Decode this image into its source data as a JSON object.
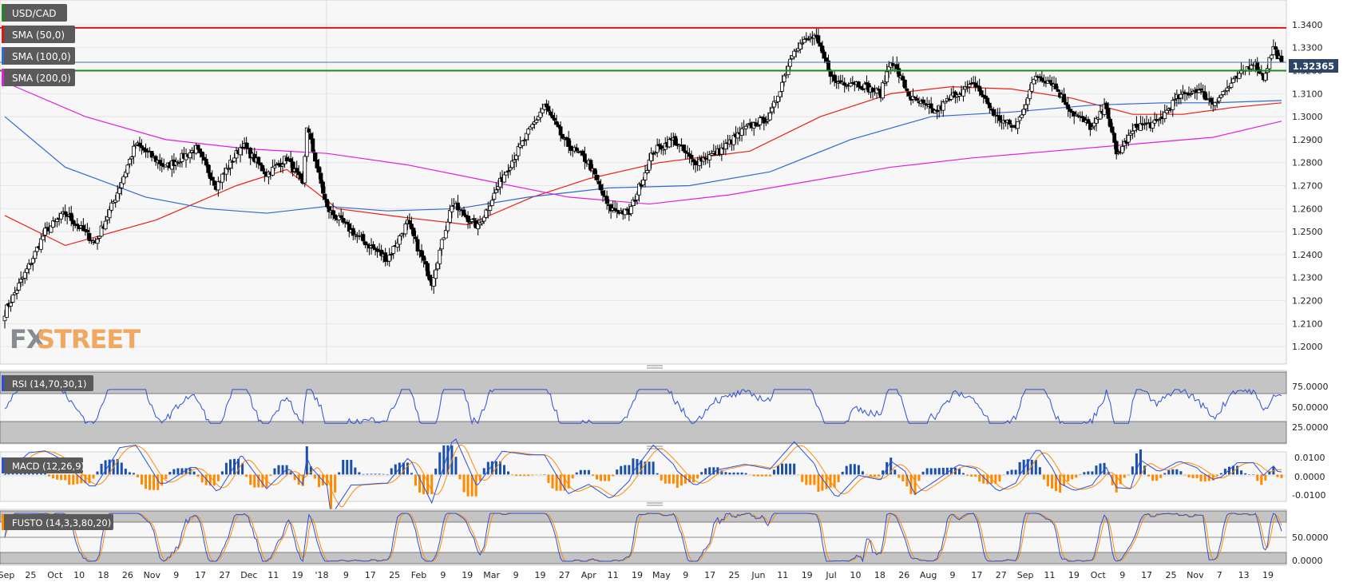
{
  "colors": {
    "background": "#ffffff",
    "panel_bg": "#f7f7f7",
    "grid": "#e4e4e4",
    "candle_up": "#ffffff",
    "candle_down": "#000000",
    "sma50": "#e8201a",
    "sma100": "#2f6ad0",
    "sma200": "#e020e0",
    "resistance_line": "#d81818",
    "support_line": "#1c8a1c",
    "price_line": "#5a6e96",
    "price_tag_bg": "#2e4468",
    "rsi_line": "#2a4fd8",
    "macd_line": "#2a4fd8",
    "signal_line": "#ff8a00",
    "hist_pos": "#1b4fa8",
    "hist_neg": "#ff8a00",
    "fusto_k": "#2a4fd8",
    "fusto_d": "#ff8a00",
    "band_fill": "#c4c4c4",
    "legend_bg": "#5a5a5a",
    "logo_color": "#f0a050"
  },
  "logo": {
    "text_fx": "FX",
    "text_street": "STREET"
  },
  "price_tag": "1.32365",
  "legend": {
    "symbol": {
      "label": "USD/CAD",
      "marker": "#1c8a1c"
    },
    "sma50": {
      "label": "SMA (50,0)",
      "marker": "#d81818"
    },
    "sma100": {
      "label": "SMA (100,0)",
      "marker": "#2f6ad0"
    },
    "sma200": {
      "label": "SMA (200,0)",
      "marker": "#e020e0"
    }
  },
  "indicators": {
    "rsi": {
      "label": "RSI (14,70,30,1)",
      "marker": "#2a4fd8",
      "ticks": [
        "75.0000",
        "50.0000",
        "25.0000"
      ]
    },
    "macd": {
      "label": "MACD (12,26,9)",
      "marker": "#2a4fd8",
      "ticks": [
        "0.0100",
        "0.0000",
        "-0.0100"
      ]
    },
    "fusto": {
      "label": "FUSTO (14,3,3,80,20)",
      "marker": "#ff8a00",
      "ticks": [
        "50.0000",
        "0.0000"
      ]
    }
  },
  "chart_data": {
    "type": "candlestick",
    "title": "USD/CAD",
    "price_axis_ticks": [
      "1.3400",
      "1.3300",
      "1.3200",
      "1.3100",
      "1.3000",
      "1.2900",
      "1.2800",
      "1.2700",
      "1.2600",
      "1.2500",
      "1.2400",
      "1.2300",
      "1.2200",
      "1.2100",
      "1.2000"
    ],
    "ylim": [
      1.1945,
      1.3455
    ],
    "x_tick_labels": [
      "Sep",
      "25",
      "Oct",
      "10",
      "18",
      "26",
      "Nov",
      "9",
      "17",
      "27",
      "Dec",
      "11",
      "19",
      "'18",
      "9",
      "17",
      "25",
      "Feb",
      "9",
      "19",
      "Mar",
      "9",
      "19",
      "27",
      "Apr",
      "11",
      "19",
      "May",
      "9",
      "17",
      "25",
      "Jun",
      "11",
      "19",
      "Jul",
      "10",
      "18",
      "26",
      "Aug",
      "9",
      "17",
      "27",
      "Sep",
      "11",
      "19",
      "Oct",
      "9",
      "17",
      "25",
      "Nov",
      "7",
      "13",
      "19"
    ],
    "horizontal_levels": {
      "resistance": 1.3386,
      "support": 1.32,
      "last_price": 1.32365
    },
    "close_series": {
      "start_date": "2017-09-08",
      "end_date": "2018-11-23",
      "anchors": [
        [
          1.215,
          0
        ],
        [
          1.235,
          12
        ],
        [
          1.25,
          20
        ],
        [
          1.258,
          30
        ],
        [
          1.245,
          45
        ],
        [
          1.265,
          55
        ],
        [
          1.288,
          65
        ],
        [
          1.278,
          80
        ],
        [
          1.286,
          95
        ],
        [
          1.27,
          105
        ],
        [
          1.288,
          118
        ],
        [
          1.275,
          130
        ],
        [
          1.282,
          140
        ],
        [
          1.27,
          148
        ],
        [
          1.296,
          150
        ],
        [
          1.26,
          160
        ],
        [
          1.248,
          175
        ],
        [
          1.238,
          190
        ],
        [
          1.254,
          200
        ],
        [
          1.228,
          212
        ],
        [
          1.262,
          222
        ],
        [
          1.252,
          235
        ],
        [
          1.275,
          248
        ],
        [
          1.29,
          258
        ],
        [
          1.305,
          268
        ],
        [
          1.289,
          278
        ],
        [
          1.28,
          290
        ],
        [
          1.26,
          300
        ],
        [
          1.258,
          310
        ],
        [
          1.285,
          322
        ],
        [
          1.29,
          332
        ],
        [
          1.28,
          342
        ],
        [
          1.285,
          355
        ],
        [
          1.295,
          368
        ],
        [
          1.3,
          380
        ],
        [
          1.33,
          392
        ],
        [
          1.335,
          402
        ],
        [
          1.315,
          412
        ],
        [
          1.315,
          422
        ],
        [
          1.31,
          435
        ],
        [
          1.325,
          440
        ],
        [
          1.308,
          450
        ],
        [
          1.302,
          462
        ],
        [
          1.31,
          472
        ],
        [
          1.314,
          482
        ],
        [
          1.3,
          492
        ],
        [
          1.295,
          502
        ],
        [
          1.318,
          512
        ],
        [
          1.315,
          520
        ],
        [
          1.302,
          530
        ],
        [
          1.295,
          540
        ],
        [
          1.305,
          547
        ],
        [
          1.283,
          552
        ],
        [
          1.296,
          562
        ],
        [
          1.297,
          572
        ],
        [
          1.308,
          582
        ],
        [
          1.312,
          592
        ],
        [
          1.306,
          600
        ],
        [
          1.315,
          610
        ],
        [
          1.324,
          620
        ],
        [
          1.317,
          625
        ],
        [
          1.33,
          630
        ],
        [
          1.3237,
          634
        ]
      ]
    },
    "series": [
      {
        "name": "SMA (50,0)",
        "values": [
          [
            0,
            1.257
          ],
          [
            30,
            1.244
          ],
          [
            75,
            1.255
          ],
          [
            115,
            1.27
          ],
          [
            140,
            1.277
          ],
          [
            165,
            1.26
          ],
          [
            200,
            1.256
          ],
          [
            230,
            1.253
          ],
          [
            262,
            1.265
          ],
          [
            290,
            1.273
          ],
          [
            325,
            1.28
          ],
          [
            370,
            1.285
          ],
          [
            405,
            1.3
          ],
          [
            440,
            1.31
          ],
          [
            470,
            1.313
          ],
          [
            500,
            1.312
          ],
          [
            530,
            1.308
          ],
          [
            560,
            1.301
          ],
          [
            585,
            1.301
          ],
          [
            610,
            1.304
          ],
          [
            634,
            1.306
          ]
        ]
      },
      {
        "name": "SMA (100,0)",
        "values": [
          [
            0,
            1.3
          ],
          [
            30,
            1.278
          ],
          [
            70,
            1.265
          ],
          [
            100,
            1.26
          ],
          [
            130,
            1.258
          ],
          [
            160,
            1.261
          ],
          [
            190,
            1.259
          ],
          [
            225,
            1.26
          ],
          [
            260,
            1.265
          ],
          [
            300,
            1.269
          ],
          [
            340,
            1.27
          ],
          [
            380,
            1.276
          ],
          [
            420,
            1.29
          ],
          [
            460,
            1.3
          ],
          [
            500,
            1.302
          ],
          [
            540,
            1.305
          ],
          [
            575,
            1.306
          ],
          [
            600,
            1.306
          ],
          [
            634,
            1.307
          ]
        ]
      },
      {
        "name": "SMA (200,0)",
        "values": [
          [
            0,
            1.315
          ],
          [
            40,
            1.3
          ],
          [
            80,
            1.29
          ],
          [
            120,
            1.286
          ],
          [
            160,
            1.284
          ],
          [
            200,
            1.279
          ],
          [
            240,
            1.272
          ],
          [
            280,
            1.265
          ],
          [
            320,
            1.262
          ],
          [
            360,
            1.266
          ],
          [
            400,
            1.272
          ],
          [
            440,
            1.278
          ],
          [
            480,
            1.282
          ],
          [
            520,
            1.285
          ],
          [
            560,
            1.288
          ],
          [
            600,
            1.291
          ],
          [
            634,
            1.298
          ]
        ]
      }
    ],
    "rsi_range": [
      0,
      100
    ],
    "macd_range": [
      -0.016,
      0.0135
    ],
    "fusto_range": [
      -5,
      105
    ]
  }
}
